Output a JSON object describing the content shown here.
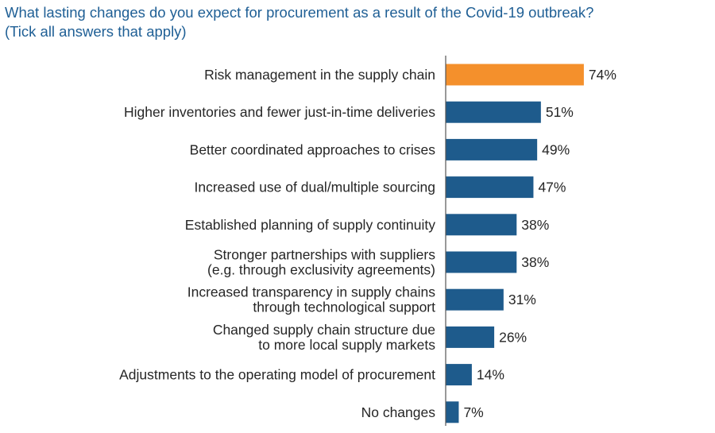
{
  "title": {
    "line1": "What lasting changes do you expect for procurement as a result of the Covid-19 outbreak?",
    "line2": "(Tick all answers that apply)"
  },
  "colors": {
    "highlight": "#f4902c",
    "bar": "#1e5b8c",
    "title": "#1f5f95",
    "text": "#262626",
    "axis": "#555555"
  },
  "chart_data": {
    "type": "bar",
    "orientation": "horizontal",
    "title": "What lasting changes do you expect for procurement as a result of the Covid-19 outbreak? (Tick all answers that apply)",
    "xlabel": "",
    "ylabel": "",
    "xlim": [
      0,
      100
    ],
    "unit": "%",
    "grid": false,
    "highlight_index": 0,
    "categories": [
      [
        "Risk management in the supply chain"
      ],
      [
        "Higher inventories and fewer just-in-time deliveries"
      ],
      [
        "Better coordinated approaches to crises"
      ],
      [
        "Increased use of dual/multiple sourcing"
      ],
      [
        "Established planning of supply continuity"
      ],
      [
        "Stronger partnerships with suppliers",
        "(e.g. through exclusivity agreements)"
      ],
      [
        "Increased transparency in supply chains",
        "through technological support"
      ],
      [
        "Changed supply chain structure due",
        "to more local supply markets"
      ],
      [
        "Adjustments to the operating model of procurement"
      ],
      [
        "No changes"
      ]
    ],
    "values": [
      74,
      51,
      49,
      47,
      38,
      38,
      31,
      26,
      14,
      7
    ]
  }
}
